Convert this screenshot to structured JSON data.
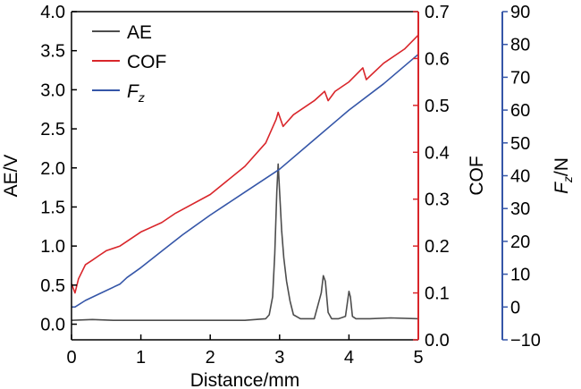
{
  "chart_data": {
    "type": "line",
    "title": "",
    "xlabel": "Distance/mm",
    "xlim": [
      0,
      5
    ],
    "x_ticks": [
      "0",
      "1",
      "2",
      "3",
      "4",
      "5"
    ],
    "axes": {
      "left": {
        "label": "AE/V",
        "ylim": [
          -0.2,
          4.0
        ],
        "ticks": [
          "0.0",
          "0.5",
          "1.0",
          "1.5",
          "2.0",
          "2.5",
          "3.0",
          "3.5",
          "4.0"
        ],
        "color": "#000000"
      },
      "right1": {
        "label": "COF",
        "ylim": [
          0.0,
          0.7
        ],
        "ticks": [
          "0.0",
          "0.1",
          "0.2",
          "0.3",
          "0.4",
          "0.5",
          "0.6",
          "0.7"
        ],
        "color": "#d9262b"
      },
      "right2": {
        "label_main": "F",
        "label_sub": "z",
        "label_tail": "/N",
        "ylim": [
          -10,
          90
        ],
        "ticks": [
          "−10",
          "0",
          "10",
          "20",
          "30",
          "40",
          "50",
          "60",
          "70",
          "80",
          "90"
        ],
        "color": "#3556a8"
      }
    },
    "legend": {
      "position": "top-left",
      "entries": [
        {
          "label": "AE",
          "color": "#4d4d4d"
        },
        {
          "label": "COF",
          "color": "#d9262b"
        },
        {
          "label_main": "F",
          "label_sub": "z",
          "color": "#3556a8"
        }
      ]
    },
    "series": [
      {
        "name": "AE",
        "axis": "left",
        "color": "#4d4d4d",
        "x": [
          0.0,
          0.3,
          0.6,
          1.0,
          1.5,
          2.0,
          2.5,
          2.8,
          2.85,
          2.9,
          2.93,
          2.96,
          2.98,
          3.0,
          3.03,
          3.06,
          3.1,
          3.15,
          3.2,
          3.3,
          3.5,
          3.6,
          3.63,
          3.66,
          3.7,
          3.75,
          3.85,
          3.95,
          4.0,
          4.02,
          4.05,
          4.1,
          4.3,
          4.6,
          5.0
        ],
        "y": [
          0.05,
          0.06,
          0.05,
          0.05,
          0.05,
          0.05,
          0.05,
          0.07,
          0.12,
          0.35,
          0.9,
          1.7,
          2.05,
          1.7,
          1.2,
          0.85,
          0.55,
          0.3,
          0.12,
          0.07,
          0.07,
          0.4,
          0.62,
          0.55,
          0.15,
          0.07,
          0.07,
          0.1,
          0.42,
          0.35,
          0.1,
          0.07,
          0.07,
          0.08,
          0.07
        ]
      },
      {
        "name": "COF",
        "axis": "right1",
        "color": "#d9262b",
        "x": [
          0.0,
          0.05,
          0.1,
          0.2,
          0.3,
          0.4,
          0.5,
          0.7,
          1.0,
          1.3,
          1.5,
          2.0,
          2.5,
          2.8,
          2.95,
          2.98,
          3.05,
          3.2,
          3.5,
          3.65,
          3.7,
          3.8,
          4.0,
          4.2,
          4.25,
          4.5,
          4.8,
          5.0
        ],
        "y": [
          0.12,
          0.1,
          0.13,
          0.16,
          0.17,
          0.18,
          0.19,
          0.2,
          0.23,
          0.25,
          0.27,
          0.31,
          0.37,
          0.42,
          0.47,
          0.485,
          0.455,
          0.48,
          0.51,
          0.53,
          0.51,
          0.53,
          0.55,
          0.58,
          0.555,
          0.59,
          0.62,
          0.65
        ]
      },
      {
        "name": "Fz",
        "axis": "right2",
        "color": "#3556a8",
        "x": [
          0.0,
          0.05,
          0.2,
          0.4,
          0.7,
          0.8,
          1.0,
          1.3,
          1.6,
          2.0,
          2.5,
          3.0,
          3.5,
          4.0,
          4.5,
          5.0
        ],
        "y": [
          0,
          0,
          2,
          4,
          7,
          9,
          12,
          17,
          22,
          28,
          35,
          42,
          51,
          60,
          68,
          77
        ]
      }
    ]
  }
}
